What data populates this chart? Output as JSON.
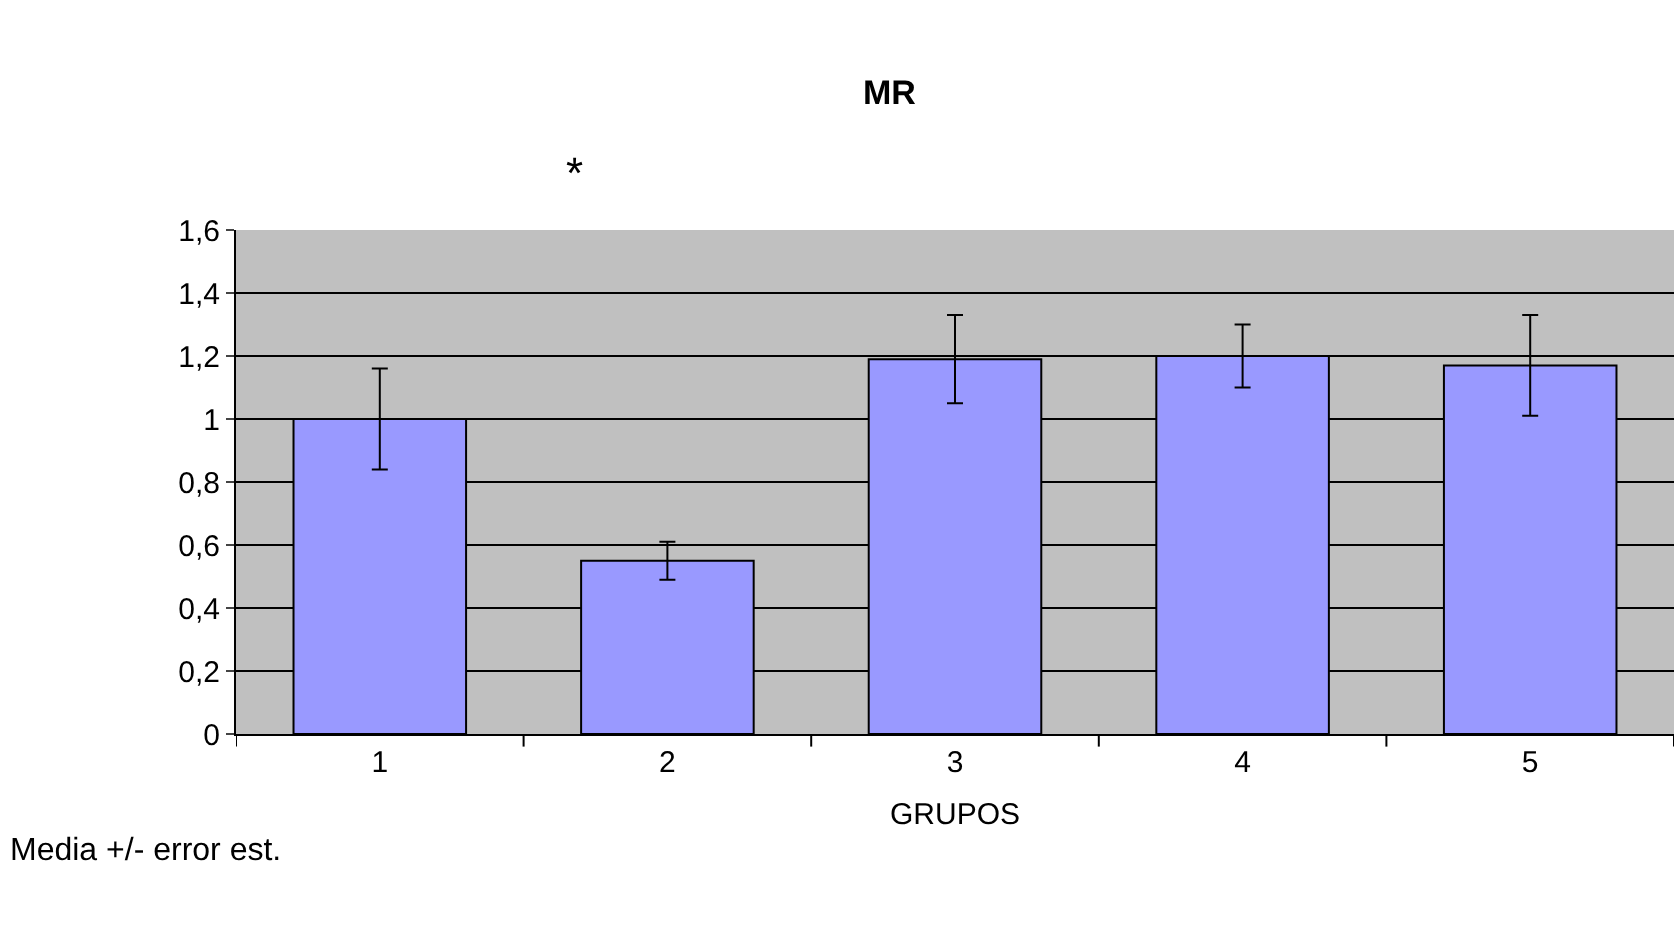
{
  "chart_data": {
    "type": "bar",
    "title": "MR",
    "xlabel": "GRUPOS",
    "categories": [
      "1",
      "2",
      "3",
      "4",
      "5"
    ],
    "series": [
      {
        "color": "#9999ff",
        "values": [
          1.0,
          0.55,
          1.19,
          1.2,
          1.17
        ],
        "errors": [
          0.16,
          0.06,
          0.14,
          0.1,
          0.16
        ]
      }
    ],
    "ylim": [
      0,
      1.6
    ],
    "yticks": [
      0,
      {
        "value": 0.2,
        "label": "0,2"
      },
      {
        "value": 0.4,
        "label": "0,4"
      },
      {
        "value": 0.6,
        "label": "0,6"
      },
      {
        "value": 0.8,
        "label": "0,8"
      },
      1,
      {
        "value": 1.2,
        "label": "1,2"
      },
      {
        "value": 1.4,
        "label": "1,4"
      },
      {
        "value": 1.6,
        "label": "1,6"
      }
    ],
    "grid": "y",
    "legend": false,
    "annotations": [
      "*",
      "Media +/- error est."
    ]
  }
}
